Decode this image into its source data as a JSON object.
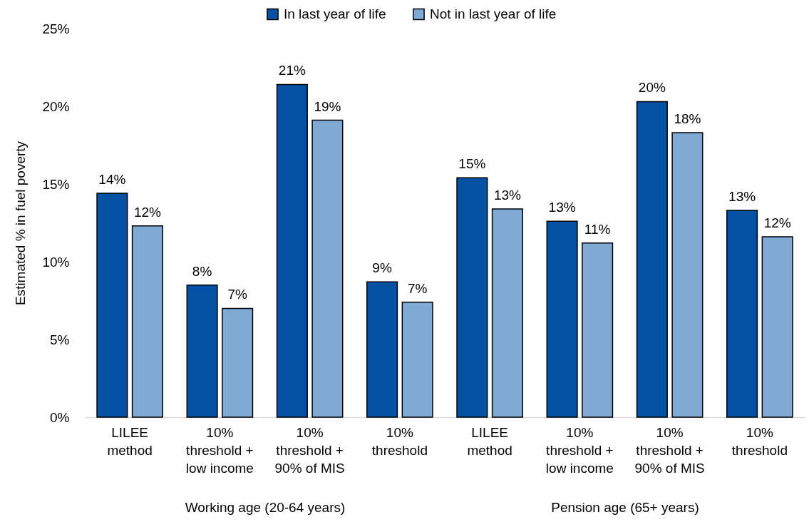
{
  "chart_data": [
    {
      "type": "bar",
      "ylabel": "Estimated % in fuel poverty",
      "xlabel": "Working age (20-64 years)",
      "categories": [
        "LILEE method",
        "10% threshold + low income",
        "10% threshold + 90% of MIS",
        "10% threshold"
      ],
      "series": [
        {
          "name": "In last year of life",
          "color": "#0352a6",
          "values": [
            14.4,
            8.5,
            21.4,
            8.7
          ],
          "value_labels": [
            "14%",
            "8%",
            "21%",
            "9%"
          ]
        },
        {
          "name": "Not in last year of life",
          "color": "#80a9d3",
          "values": [
            12.3,
            7,
            19.1,
            7.4
          ],
          "value_labels": [
            "12%",
            "7%",
            "19%",
            "7%"
          ]
        }
      ],
      "ylim": [
        0,
        25
      ],
      "yticks": [
        {
          "value": 0,
          "label": "0%"
        },
        {
          "value": 5,
          "label": "5%"
        },
        {
          "value": 10,
          "label": "10%"
        },
        {
          "value": 15,
          "label": "15%"
        },
        {
          "value": 20,
          "label": "20%"
        },
        {
          "value": 25,
          "label": "25%"
        }
      ],
      "legend": "top"
    },
    {
      "type": "bar",
      "xlabel": "Pension age (65+ years)",
      "categories": [
        "LILEE method",
        "10% threshold + low income",
        "10% threshold + 90% of MIS",
        "10% threshold"
      ],
      "series": [
        {
          "color": "#0352a6",
          "values": [
            15.4,
            12.6,
            20.3,
            13.3
          ],
          "value_labels": [
            "15%",
            "13%",
            "20%",
            "13%"
          ]
        },
        {
          "color": "#80a9d3",
          "values": [
            13.4,
            11.2,
            18.3,
            11.6
          ],
          "value_labels": [
            "13%",
            "11%",
            "18%",
            "12%"
          ]
        }
      ],
      "ylim": [
        0,
        25
      ],
      "tick_labels": "x"
    }
  ]
}
